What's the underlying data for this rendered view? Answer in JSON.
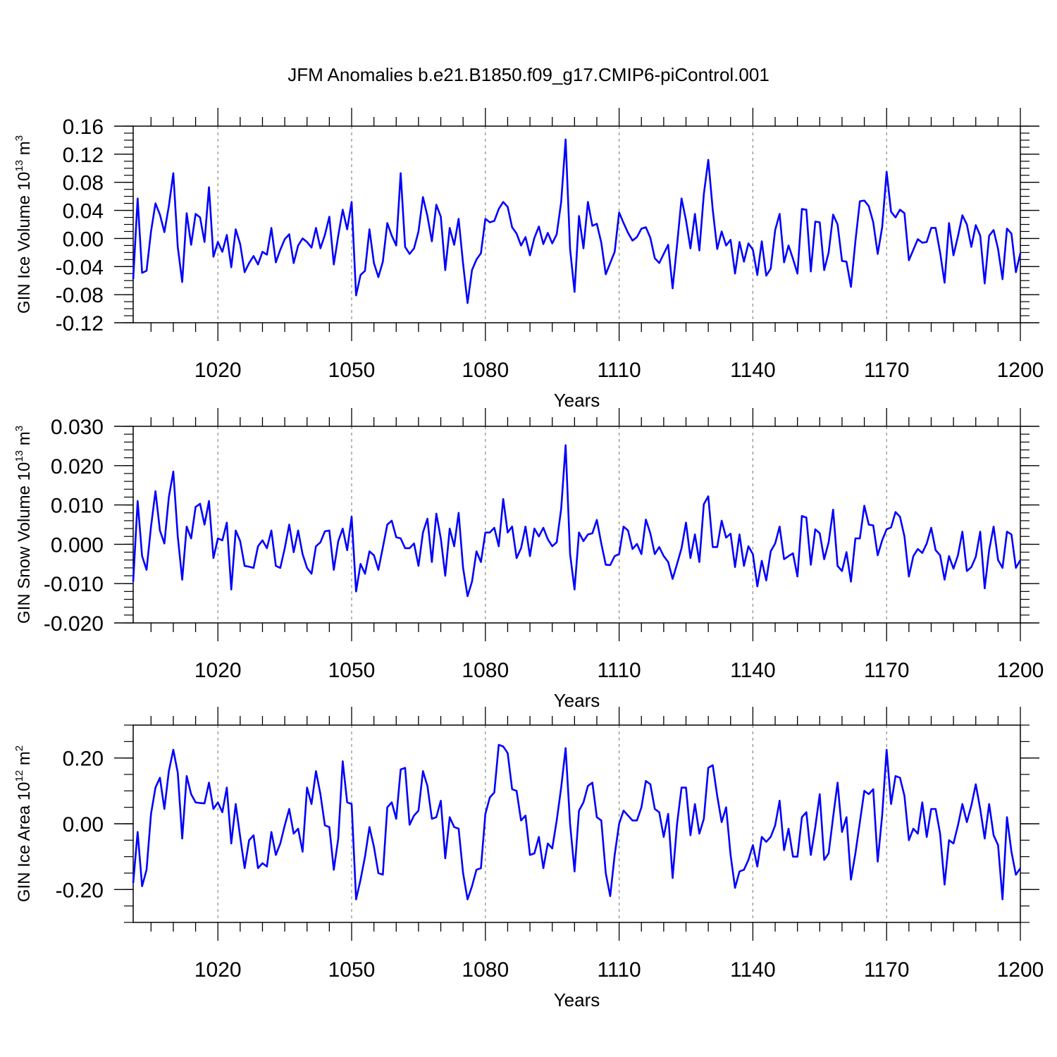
{
  "figure": {
    "title": "JFM Anomalies b.e21.B1850.f09_g17.CMIP6-piControl.001",
    "line_color": "#0000ff",
    "grid_color": "#888888"
  },
  "chart_data": [
    {
      "type": "line",
      "title": "JFM Anomalies b.e21.B1850.f09_g17.CMIP6-piControl.001",
      "xlabel": "Years",
      "ylabel_main": "GIN Ice Volume 10",
      "ylabel_exp": "13",
      "ylabel_unit": " m",
      "ylabel_unit_exp": "3",
      "xlim": [
        1001,
        1200
      ],
      "ylim": [
        -0.12,
        0.16
      ],
      "xticks": [
        1020,
        1050,
        1080,
        1110,
        1140,
        1170,
        1200
      ],
      "yticks": [
        -0.12,
        -0.08,
        -0.04,
        0.0,
        0.04,
        0.08,
        0.12,
        0.16
      ],
      "yticklabels": [
        "-0.12",
        "-0.08",
        "-0.04",
        "0.00",
        "0.04",
        "0.08",
        "0.12",
        "0.16"
      ],
      "yminor": 0.01,
      "grid": "dashed vertical at major x ticks",
      "series": [
        {
          "name": "GIN Ice Volume",
          "x_start": 1001,
          "values": [
            -0.058,
            0.057,
            -0.049,
            -0.046,
            0.01,
            0.05,
            0.034,
            0.009,
            0.046,
            0.093,
            -0.012,
            -0.062,
            0.036,
            -0.009,
            0.035,
            0.03,
            -0.005,
            0.073,
            -0.026,
            -0.005,
            -0.019,
            0.005,
            -0.041,
            0.013,
            -0.008,
            -0.048,
            -0.035,
            -0.025,
            -0.037,
            -0.019,
            -0.023,
            0.015,
            -0.034,
            -0.016,
            -0.001,
            0.006,
            -0.035,
            -0.01,
            0.0,
            -0.005,
            -0.013,
            0.015,
            -0.014,
            0.005,
            0.031,
            -0.037,
            0.004,
            0.041,
            0.013,
            0.052,
            -0.081,
            -0.052,
            -0.046,
            0.013,
            -0.035,
            -0.055,
            -0.033,
            0.022,
            0.004,
            -0.01,
            0.093,
            -0.012,
            -0.022,
            -0.014,
            0.01,
            0.059,
            0.032,
            -0.004,
            0.048,
            0.031,
            -0.045,
            0.015,
            -0.009,
            0.028,
            -0.036,
            -0.092,
            -0.045,
            -0.03,
            -0.021,
            0.028,
            0.023,
            0.025,
            0.042,
            0.052,
            0.045,
            0.016,
            0.007,
            -0.01,
            0.002,
            -0.024,
            0.001,
            0.017,
            -0.008,
            0.008,
            -0.007,
            0.006,
            0.052,
            0.141,
            -0.015,
            -0.076,
            0.032,
            -0.014,
            0.052,
            0.018,
            0.021,
            -0.006,
            -0.051,
            -0.035,
            -0.019,
            0.037,
            0.022,
            0.008,
            -0.003,
            0.002,
            0.014,
            0.016,
            0.001,
            -0.028,
            -0.035,
            -0.022,
            -0.009,
            -0.071,
            -0.009,
            0.057,
            0.026,
            -0.014,
            0.035,
            -0.017,
            0.063,
            0.112,
            0.041,
            -0.015,
            0.01,
            -0.01,
            -0.002,
            -0.05,
            -0.005,
            -0.033,
            -0.007,
            -0.016,
            -0.052,
            -0.004,
            -0.053,
            -0.043,
            0.012,
            0.035,
            -0.034,
            -0.01,
            -0.029,
            -0.05,
            0.042,
            0.041,
            -0.047,
            0.024,
            0.023,
            -0.045,
            -0.02,
            0.034,
            0.02,
            -0.032,
            -0.033,
            -0.069,
            -0.004,
            0.053,
            0.054,
            0.046,
            0.023,
            -0.022,
            0.016,
            0.095,
            0.038,
            0.03,
            0.041,
            0.036,
            -0.031,
            -0.016,
            -0.001,
            -0.006,
            -0.005,
            0.015,
            0.015,
            -0.02,
            -0.063,
            0.022,
            -0.024,
            0.003,
            0.033,
            0.02,
            -0.012,
            0.019,
            0.004,
            -0.064,
            0.004,
            0.012,
            -0.015,
            -0.058,
            0.014,
            0.007,
            -0.048,
            -0.021
          ]
        }
      ]
    },
    {
      "type": "line",
      "xlabel": "Years",
      "ylabel_main": "GIN Snow Volume 10",
      "ylabel_exp": "13",
      "ylabel_unit": " m",
      "ylabel_unit_exp": "3",
      "xlim": [
        1001,
        1200
      ],
      "ylim": [
        -0.02,
        0.03
      ],
      "xticks": [
        1020,
        1050,
        1080,
        1110,
        1140,
        1170,
        1200
      ],
      "yticks": [
        -0.02,
        -0.01,
        0.0,
        0.01,
        0.02,
        0.03
      ],
      "yticklabels": [
        "-0.020",
        "-0.010",
        "0.000",
        "0.010",
        "0.020",
        "0.030"
      ],
      "yminor": 0.002,
      "grid": "dashed vertical at major x ticks",
      "series": [
        {
          "name": "GIN Snow Volume",
          "x_start": 1001,
          "values": [
            -0.0095,
            0.011,
            -0.003,
            -0.0065,
            0.0045,
            0.0135,
            0.0035,
            0.0002,
            0.012,
            0.0185,
            0.002,
            -0.009,
            0.0045,
            0.0015,
            0.0095,
            0.0103,
            0.005,
            0.011,
            -0.0035,
            0.0015,
            0.001,
            0.0055,
            -0.0115,
            0.0035,
            0.0008,
            -0.0055,
            -0.0057,
            -0.006,
            -0.0005,
            0.001,
            -0.001,
            0.0035,
            -0.0055,
            -0.006,
            -0.001,
            0.005,
            -0.002,
            0.0035,
            -0.0025,
            -0.006,
            -0.0075,
            -0.0005,
            0.0005,
            0.0033,
            0.0035,
            -0.0065,
            0.0008,
            0.004,
            -0.0015,
            0.007,
            -0.012,
            -0.005,
            -0.0075,
            -0.0018,
            -0.0028,
            -0.0065,
            -0.0008,
            0.005,
            0.006,
            0.0018,
            0.0015,
            -0.001,
            -0.001,
            0.0002,
            -0.0055,
            0.003,
            0.0065,
            -0.0045,
            0.0078,
            0.0015,
            -0.008,
            0.004,
            -0.0005,
            0.008,
            -0.006,
            -0.0132,
            -0.0095,
            -0.0018,
            -0.0045,
            0.003,
            0.003,
            0.0042,
            -0.0005,
            0.0115,
            0.003,
            0.0045,
            -0.0035,
            -0.001,
            0.0045,
            -0.003,
            0.004,
            0.002,
            0.0042,
            0.0013,
            -0.0005,
            0.0005,
            0.009,
            0.0252,
            -0.0025,
            -0.0115,
            0.003,
            0.0008,
            0.0025,
            0.0028,
            0.0062,
            0.0002,
            -0.0052,
            -0.0053,
            -0.003,
            -0.0025,
            0.0045,
            0.0035,
            -0.0012,
            0.0001,
            -0.0025,
            0.0063,
            0.0028,
            -0.0025,
            -0.0007,
            -0.003,
            -0.0045,
            -0.0088,
            -0.005,
            -0.001,
            0.0055,
            -0.0035,
            0.0025,
            -0.0045,
            0.0102,
            0.0122,
            -0.0007,
            -0.0007,
            0.006,
            0.0017,
            0.0027,
            -0.0058,
            0.0025,
            -0.0055,
            -0.0005,
            -0.0025,
            -0.0107,
            -0.0042,
            -0.0092,
            -0.0018,
            0.0002,
            0.0045,
            -0.0038,
            -0.003,
            -0.0023,
            -0.0082,
            0.0072,
            0.0068,
            -0.0052,
            0.0038,
            0.0028,
            -0.0038,
            0.0005,
            0.0088,
            -0.0055,
            -0.0068,
            -0.002,
            -0.0095,
            0.0015,
            0.0015,
            0.0098,
            0.005,
            0.0048,
            -0.0028,
            0.001,
            0.0038,
            0.0043,
            0.0082,
            0.007,
            0.002,
            -0.0082,
            -0.003,
            -0.0012,
            -0.0022,
            0.0002,
            0.0042,
            -0.0015,
            -0.0028,
            -0.009,
            -0.003,
            -0.0062,
            -0.0028,
            0.0032,
            -0.0068,
            -0.0058,
            -0.0032,
            0.0032,
            -0.0112,
            -0.0015,
            0.0045,
            -0.004,
            -0.006,
            0.0032,
            0.0025,
            -0.006,
            -0.004
          ]
        }
      ]
    },
    {
      "type": "line",
      "xlabel": "Years",
      "ylabel_main": "GIN Ice Area 10",
      "ylabel_exp": "12",
      "ylabel_unit": " m",
      "ylabel_unit_exp": "2",
      "xlim": [
        1001,
        1200
      ],
      "ylim": [
        -0.3,
        0.3
      ],
      "xticks": [
        1020,
        1050,
        1080,
        1110,
        1140,
        1170,
        1200
      ],
      "yticks": [
        -0.2,
        0.0,
        0.2
      ],
      "yticklabels": [
        "-0.20",
        "0.00",
        "0.20"
      ],
      "yminor": 0.05,
      "grid": "dashed vertical at major x ticks",
      "series": [
        {
          "name": "GIN Ice Area",
          "x_start": 1001,
          "values": [
            -0.18,
            -0.025,
            -0.19,
            -0.14,
            0.03,
            0.11,
            0.14,
            0.045,
            0.16,
            0.225,
            0.155,
            -0.045,
            0.145,
            0.09,
            0.065,
            0.063,
            0.062,
            0.125,
            0.045,
            0.065,
            0.035,
            0.11,
            -0.06,
            0.06,
            -0.04,
            -0.135,
            -0.05,
            -0.035,
            -0.135,
            -0.12,
            -0.13,
            -0.025,
            -0.095,
            -0.06,
            -0.005,
            0.045,
            -0.03,
            -0.015,
            -0.085,
            0.11,
            0.06,
            0.16,
            0.09,
            -0.005,
            -0.01,
            -0.14,
            -0.045,
            0.19,
            0.065,
            0.06,
            -0.23,
            -0.17,
            -0.1,
            -0.01,
            -0.07,
            -0.15,
            -0.155,
            0.05,
            0.065,
            0.015,
            0.165,
            0.17,
            -0.003,
            0.025,
            0.04,
            0.16,
            0.115,
            0.015,
            0.02,
            0.07,
            -0.105,
            0.02,
            -0.01,
            -0.015,
            -0.15,
            -0.23,
            -0.19,
            -0.14,
            -0.135,
            0.03,
            0.08,
            0.095,
            0.24,
            0.235,
            0.215,
            0.105,
            0.1,
            0.01,
            0.025,
            -0.095,
            -0.09,
            -0.04,
            -0.135,
            -0.06,
            -0.075,
            0.01,
            0.11,
            0.23,
            0.0,
            -0.145,
            0.04,
            0.065,
            0.115,
            0.125,
            0.02,
            0.01,
            -0.15,
            -0.22,
            -0.095,
            0.0,
            0.04,
            0.025,
            0.01,
            0.01,
            0.05,
            0.13,
            0.12,
            0.045,
            0.035,
            -0.04,
            0.03,
            -0.165,
            0.0,
            0.11,
            0.11,
            -0.035,
            0.06,
            -0.03,
            0.015,
            0.17,
            0.178,
            0.085,
            0.005,
            0.05,
            -0.095,
            -0.195,
            -0.145,
            -0.14,
            -0.11,
            -0.065,
            -0.13,
            -0.04,
            -0.055,
            -0.04,
            -0.005,
            0.07,
            -0.08,
            -0.015,
            -0.1,
            -0.1,
            0.02,
            0.035,
            -0.095,
            -0.01,
            0.09,
            -0.11,
            -0.09,
            0.02,
            0.125,
            -0.025,
            0.02,
            -0.17,
            -0.09,
            0.005,
            0.1,
            0.09,
            0.105,
            -0.115,
            0.025,
            0.225,
            0.06,
            0.145,
            0.14,
            0.085,
            -0.05,
            -0.015,
            -0.03,
            0.065,
            -0.04,
            0.045,
            0.045,
            -0.03,
            -0.185,
            -0.05,
            -0.06,
            -0.005,
            0.06,
            0.005,
            0.055,
            0.12,
            0.045,
            -0.045,
            0.06,
            -0.035,
            -0.065,
            -0.23,
            0.02,
            -0.085,
            -0.155,
            -0.135
          ]
        }
      ]
    }
  ]
}
